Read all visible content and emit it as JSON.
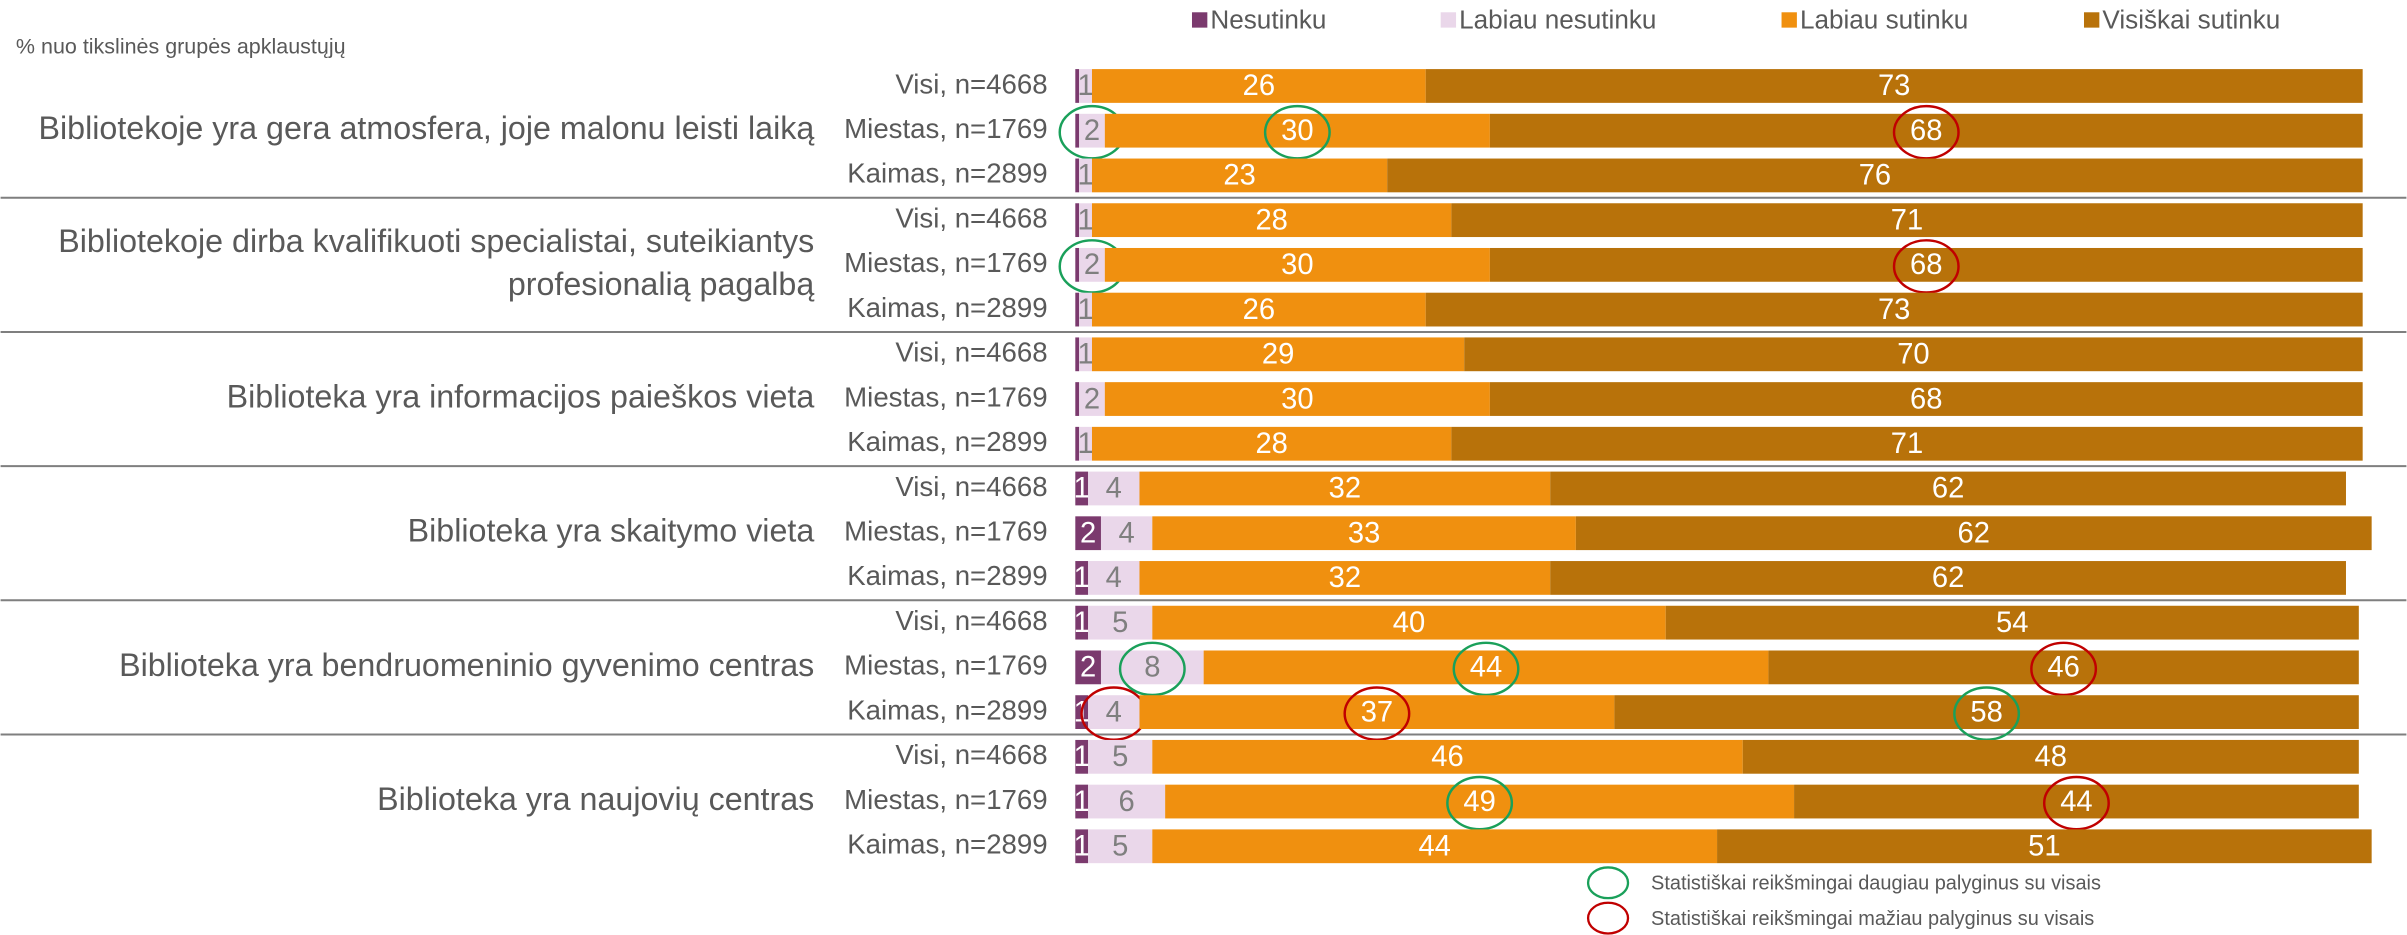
{
  "chart_data": {
    "type": "stacked-bar-horizontal",
    "subtitle": "% nuo tikslinės grupės apklaustųjų",
    "groups": [
      [
        "Bibliotekoje yra gera atmosfera, joje malonu leisti laiką"
      ],
      [
        "Bibliotekoje dirba kvalifikuoti specialistai, suteikiantys",
        "profesionalią pagalbą"
      ],
      [
        "Biblioteka yra informacijos paieškos vieta"
      ],
      [
        "Biblioteka yra skaitymo vieta"
      ],
      [
        "Biblioteka yra bendruomeninio gyvenimo centras"
      ],
      [
        "Biblioteka yra naujovių centras"
      ]
    ],
    "categories": [
      "Visi, n=4668",
      "Miestas, n=1769",
      "Kaimas, n=2899",
      "Visi, n=4668",
      "Miestas, n=1769",
      "Kaimas, n=2899",
      "Visi, n=4668",
      "Miestas, n=1769",
      "Kaimas, n=2899",
      "Visi, n=4668",
      "Miestas, n=1769",
      "Kaimas, n=2899",
      "Visi, n=4668",
      "Miestas, n=1769",
      "Kaimas, n=2899",
      "Visi, n=4668",
      "Miestas, n=1769",
      "Kaimas, n=2899"
    ],
    "series": [
      {
        "name": "Nesutinku",
        "color": "#7b3a6e",
        "values": [
          0.3,
          0.3,
          0.3,
          0.3,
          0.3,
          0.3,
          0.3,
          0.3,
          0.3,
          1,
          2,
          1,
          1,
          2,
          1,
          1,
          1,
          1
        ],
        "value_labels": [
          null,
          null,
          null,
          null,
          null,
          null,
          null,
          null,
          null,
          "1",
          "2",
          "1",
          "1",
          "2",
          "1",
          "1",
          "1",
          "1"
        ],
        "significance": [
          null,
          null,
          null,
          null,
          null,
          null,
          null,
          null,
          null,
          null,
          null,
          null,
          null,
          null,
          null,
          null,
          null,
          null
        ]
      },
      {
        "name": "Labiau nesutinku",
        "color": "#ead7ea",
        "values": [
          1,
          2,
          1,
          1,
          2,
          1,
          1,
          2,
          1,
          4,
          4,
          4,
          5,
          8,
          4,
          5,
          6,
          5
        ],
        "significance": [
          null,
          0,
          null,
          null,
          0,
          null,
          null,
          null,
          null,
          null,
          null,
          null,
          null,
          0,
          1,
          null,
          null,
          null
        ]
      },
      {
        "name": "Labiau sutinku",
        "color": "#f0900f",
        "values": [
          26,
          30,
          23,
          28,
          30,
          26,
          29,
          30,
          28,
          32,
          33,
          32,
          40,
          44,
          37,
          46,
          49,
          44
        ],
        "significance": [
          null,
          0,
          null,
          null,
          null,
          null,
          null,
          null,
          null,
          null,
          null,
          null,
          null,
          0,
          1,
          null,
          0,
          null
        ]
      },
      {
        "name": "Visiškai sutinku",
        "color": "#b8720a",
        "values": [
          73,
          68,
          76,
          71,
          68,
          73,
          70,
          68,
          71,
          62,
          62,
          62,
          54,
          46,
          58,
          48,
          44,
          51
        ],
        "significance": [
          null,
          1,
          null,
          null,
          1,
          null,
          null,
          null,
          null,
          null,
          null,
          null,
          null,
          1,
          0,
          null,
          1,
          null
        ]
      }
    ],
    "significance_legend": [
      {
        "name": "Statistiškai reikšmingai daugiau palyginus su visais",
        "color": "#1aa05a"
      },
      {
        "name": "Statistiškai reikšmingai mažiau palyginus su visais",
        "color": "#c00000"
      }
    ]
  }
}
